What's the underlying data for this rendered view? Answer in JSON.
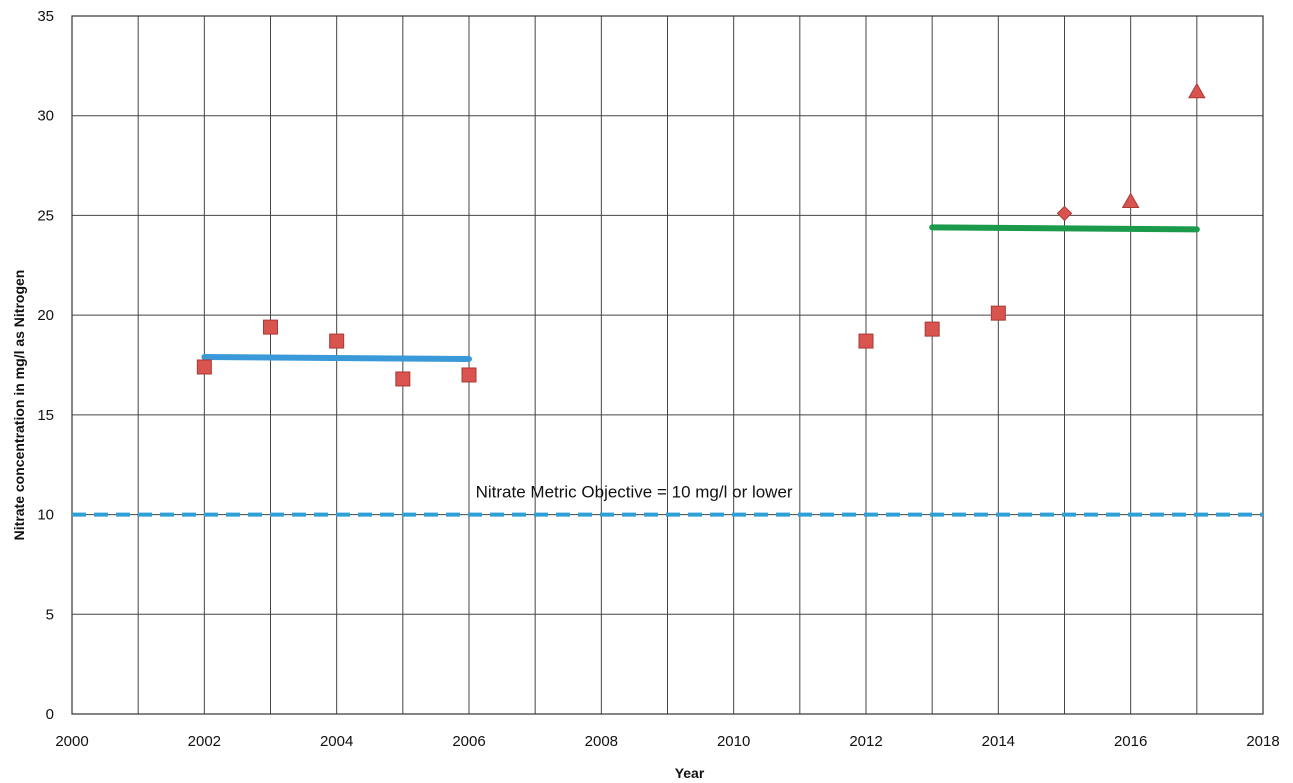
{
  "chart_data": {
    "type": "scatter",
    "title": "",
    "xlabel": "Year",
    "ylabel": "Nitrate concentration in mg/l as Nitrogen",
    "xlim": [
      2000,
      2018
    ],
    "ylim": [
      0,
      35
    ],
    "xticks": [
      2000,
      2002,
      2004,
      2006,
      2008,
      2010,
      2012,
      2014,
      2016,
      2018
    ],
    "yticks": [
      0,
      5,
      10,
      15,
      20,
      25,
      30,
      35
    ],
    "x_minor_step": 1,
    "grid": true,
    "series": [
      {
        "marker": "square",
        "color": "#d9534f",
        "points": [
          {
            "x": 2002,
            "y": 17.4
          },
          {
            "x": 2003,
            "y": 19.4
          },
          {
            "x": 2004,
            "y": 18.7
          },
          {
            "x": 2005,
            "y": 16.8
          },
          {
            "x": 2006,
            "y": 17.0
          },
          {
            "x": 2012,
            "y": 18.7
          },
          {
            "x": 2013,
            "y": 19.3
          },
          {
            "x": 2014,
            "y": 20.1
          }
        ]
      },
      {
        "marker": "diamond",
        "color": "#d9534f",
        "points": [
          {
            "x": 2015,
            "y": 25.1
          }
        ]
      },
      {
        "marker": "triangle",
        "color": "#d9534f",
        "points": [
          {
            "x": 2016,
            "y": 25.7
          },
          {
            "x": 2017,
            "y": 31.2
          }
        ]
      }
    ],
    "trend_lines": [
      {
        "color": "#3a9ad9",
        "from": {
          "x": 2002,
          "y": 17.9
        },
        "to": {
          "x": 2006,
          "y": 17.8
        }
      },
      {
        "color": "#1a9a4a",
        "from": {
          "x": 2013,
          "y": 24.4
        },
        "to": {
          "x": 2017,
          "y": 24.3
        }
      }
    ],
    "reference_line": {
      "y": 10,
      "color": "#2f9fd8",
      "style": "dashed",
      "label": "Nitrate Metric Objective = 10 mg/l or lower"
    }
  }
}
